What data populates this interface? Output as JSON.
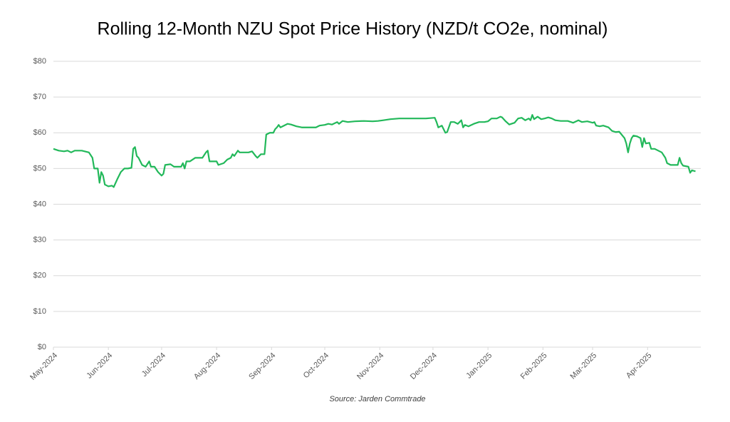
{
  "chart_data": {
    "type": "line",
    "title": "Rolling 12-Month NZU Spot Price History (NZD/t CO2e, nominal)",
    "source": "Source: Jarden Commtrade",
    "xlim": [
      0,
      365
    ],
    "xticks": [
      {
        "value": 0,
        "label": "May-2024"
      },
      {
        "value": 31,
        "label": "Jun-2024"
      },
      {
        "value": 61,
        "label": "Jul-2024"
      },
      {
        "value": 92,
        "label": "Aug-2024"
      },
      {
        "value": 123,
        "label": "Sep-2024"
      },
      {
        "value": 153,
        "label": "Oct-2024"
      },
      {
        "value": 184,
        "label": "Nov-2024"
      },
      {
        "value": 214,
        "label": "Dec-2024"
      },
      {
        "value": 245,
        "label": "Jan-2025"
      },
      {
        "value": 276,
        "label": "Feb-2025"
      },
      {
        "value": 304,
        "label": "Mar-2025"
      },
      {
        "value": 335,
        "label": "Apr-2025"
      }
    ],
    "ylim": [
      0,
      80
    ],
    "yticks": [
      {
        "value": 0,
        "label": "$0"
      },
      {
        "value": 10,
        "label": "$10"
      },
      {
        "value": 20,
        "label": "$20"
      },
      {
        "value": 30,
        "label": "$30"
      },
      {
        "value": 40,
        "label": "$40"
      },
      {
        "value": 50,
        "label": "$50"
      },
      {
        "value": 60,
        "label": "$60"
      },
      {
        "value": 70,
        "label": "$70"
      },
      {
        "value": 80,
        "label": "$80"
      }
    ],
    "grid": true,
    "x": [
      0,
      3,
      6,
      8,
      10,
      12,
      16,
      20,
      22,
      23,
      25,
      26,
      27,
      28,
      29,
      31,
      33,
      34,
      36,
      38,
      40,
      42,
      44,
      45,
      46,
      47,
      48,
      50,
      52,
      54,
      55,
      57,
      59,
      61,
      62,
      63,
      66,
      68,
      70,
      72,
      73,
      74,
      75,
      77,
      80,
      82,
      84,
      86,
      87,
      88,
      90,
      92,
      93,
      96,
      98,
      100,
      101,
      102,
      104,
      105,
      108,
      110,
      112,
      114,
      115,
      117,
      119,
      120,
      122,
      124,
      125,
      126,
      127,
      128,
      130,
      132,
      134,
      137,
      140,
      145,
      148,
      150,
      153,
      155,
      157,
      160,
      161,
      163,
      166,
      170,
      175,
      180,
      183,
      186,
      190,
      195,
      200,
      205,
      210,
      215,
      216,
      217,
      219,
      220,
      221,
      222,
      224,
      226,
      228,
      230,
      231,
      232,
      234,
      237,
      240,
      243,
      245,
      247,
      250,
      252,
      253,
      255,
      257,
      260,
      262,
      264,
      266,
      268,
      269,
      270,
      271,
      273,
      275,
      277,
      279,
      281,
      283,
      286,
      290,
      293,
      296,
      298,
      301,
      304,
      305,
      306,
      308,
      310,
      313,
      315,
      317,
      319,
      322,
      323,
      324,
      325,
      326,
      327,
      329,
      331,
      332,
      333,
      334,
      336,
      337,
      339,
      341,
      343,
      345,
      346,
      348,
      350,
      352,
      353,
      354,
      355,
      358,
      359,
      360,
      362
    ],
    "series": [
      {
        "name": "NZU spot price",
        "color": "#22b85a",
        "values": [
          55.5,
          55,
          54.8,
          55,
          54.5,
          55,
          55,
          54.5,
          53,
          50,
          50,
          46,
          49,
          48,
          45.5,
          45,
          45.2,
          44.8,
          47,
          49,
          50,
          50,
          50.2,
          55.5,
          56,
          53.5,
          53,
          51,
          50.5,
          52,
          50.5,
          50.5,
          49,
          48,
          48.5,
          51,
          51.2,
          50.5,
          50.5,
          50.5,
          51.5,
          50,
          52,
          52,
          53,
          53,
          53,
          54.5,
          55,
          52,
          52,
          52,
          51,
          51.5,
          52.5,
          53,
          54,
          53.5,
          55,
          54.5,
          54.5,
          54.5,
          54.8,
          53.5,
          53,
          54,
          54,
          59.5,
          60,
          60,
          61,
          61.5,
          62.2,
          61.5,
          62,
          62.5,
          62.3,
          61.8,
          61.5,
          61.5,
          61.5,
          62,
          62.2,
          62.5,
          62.3,
          63,
          62.5,
          63.3,
          63,
          63.2,
          63.3,
          63.2,
          63.3,
          63.5,
          63.8,
          64,
          64,
          64,
          64,
          64.2,
          63,
          61.5,
          62,
          61,
          60,
          60.2,
          63,
          63,
          62.5,
          63.5,
          61.5,
          62.2,
          61.8,
          62.5,
          63,
          63,
          63.2,
          64,
          64,
          64.5,
          64.3,
          63.2,
          62.3,
          62.8,
          64,
          64.2,
          63.5,
          64,
          63.5,
          65,
          63.8,
          64.5,
          63.8,
          64,
          64.3,
          64,
          63.5,
          63.3,
          63.3,
          62.8,
          63.5,
          63,
          63.2,
          62.8,
          63,
          62,
          61.8,
          62,
          61.5,
          60.5,
          60.2,
          60.3,
          58.5,
          57,
          54.5,
          57,
          58.5,
          59.2,
          59,
          58.5,
          56,
          58.5,
          57,
          57.2,
          55.5,
          55.5,
          55,
          54.5,
          53,
          51.5,
          51,
          51,
          51,
          53,
          51.5,
          50.8,
          50.5,
          48.8,
          49.5,
          49.2
        ]
      }
    ]
  }
}
